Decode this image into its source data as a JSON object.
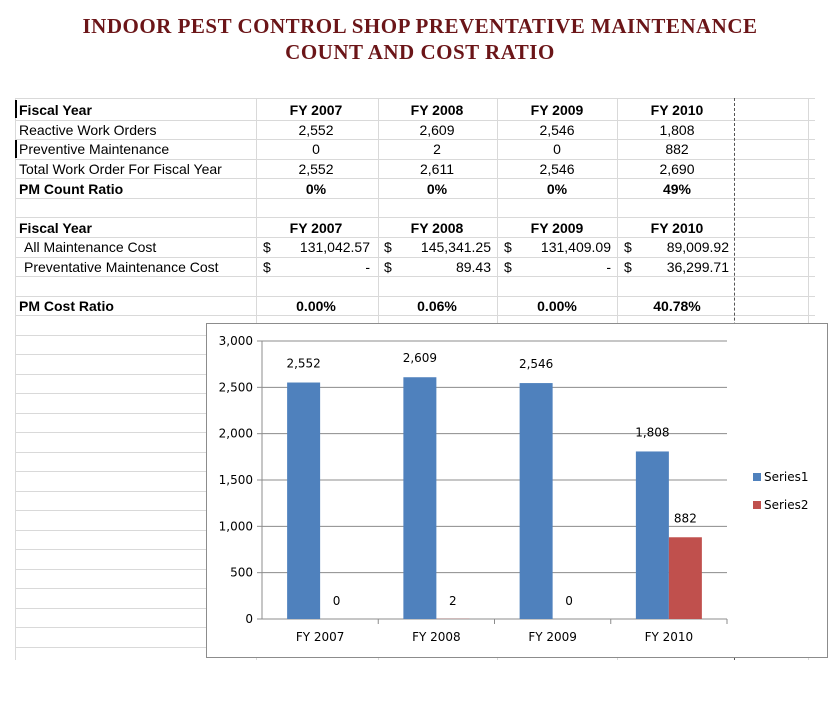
{
  "title_line1": "INDOOR PEST CONTROL SHOP PREVENTATIVE MAINTENANCE",
  "title_line2": "COUNT AND COST RATIO",
  "count_table": {
    "header": [
      "Fiscal Year",
      "FY 2007",
      "FY 2008",
      "FY 2009",
      "FY 2010"
    ],
    "rows": [
      [
        "Reactive Work Orders",
        "2,552",
        "2,609",
        "2,546",
        "1,808"
      ],
      [
        "Preventive Maintenance",
        "0",
        "2",
        "0",
        "882"
      ],
      [
        "Total Work Order For Fiscal Year",
        "2,552",
        "2,611",
        "2,546",
        "2,690"
      ]
    ],
    "ratio": [
      "PM Count Ratio",
      "0%",
      "0%",
      "0%",
      "49%"
    ]
  },
  "cost_table": {
    "header": [
      "Fiscal Year",
      "FY 2007",
      "FY 2008",
      "FY 2009",
      "FY 2010"
    ],
    "currency": "$",
    "rows": [
      [
        "All Maintenance Cost",
        "131,042.57",
        "145,341.25",
        "131,409.09",
        "89,009.92"
      ],
      [
        "Preventative Maintenance Cost",
        "-",
        "89.43",
        "-",
        "36,299.71"
      ]
    ],
    "ratio": [
      "PM Cost Ratio",
      "0.00%",
      "0.06%",
      "0.00%",
      "40.78%"
    ]
  },
  "chart_data": {
    "type": "bar",
    "categories": [
      "FY 2007",
      "FY 2008",
      "FY 2009",
      "FY 2010"
    ],
    "series": [
      {
        "name": "Series1",
        "values": [
          2552,
          2609,
          2546,
          1808
        ],
        "labels": [
          "2,552",
          "2,609",
          "2,546",
          "1,808"
        ],
        "color": "#4f81bd"
      },
      {
        "name": "Series2",
        "values": [
          0,
          2,
          0,
          882
        ],
        "labels": [
          "0",
          "2",
          "0",
          "882"
        ],
        "color": "#c0504d"
      }
    ],
    "ylim": [
      0,
      3000
    ],
    "yticks": [
      0,
      500,
      1000,
      1500,
      2000,
      2500,
      3000
    ],
    "ytick_labels": [
      "0",
      "500",
      "1,000",
      "1,500",
      "2,000",
      "2,500",
      "3,000"
    ],
    "grid": true,
    "legend": "right"
  }
}
